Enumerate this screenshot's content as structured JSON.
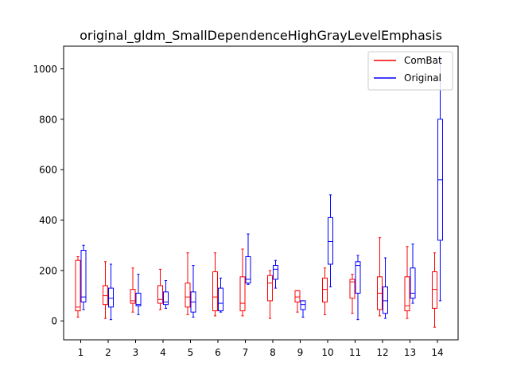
{
  "chart_data": {
    "type": "box",
    "title": "original_gldm_SmallDependenceHighGrayLevelEmphasis",
    "xlabel": "",
    "ylabel": "",
    "categories": [
      "1",
      "2",
      "3",
      "4",
      "5",
      "6",
      "7",
      "8",
      "9",
      "10",
      "11",
      "12",
      "13",
      "14"
    ],
    "ylim": [
      -75,
      1090
    ],
    "yticks": [
      0,
      200,
      400,
      600,
      800,
      1000
    ],
    "legend": {
      "position": "top-right"
    },
    "series": [
      {
        "name": "ComBat",
        "color": "#ff0000",
        "boxes": [
          {
            "whislo": 15,
            "q1": 40,
            "med": 55,
            "q3": 240,
            "whishi": 255
          },
          {
            "whislo": 10,
            "q1": 65,
            "med": 100,
            "q3": 140,
            "whishi": 235
          },
          {
            "whislo": 35,
            "q1": 70,
            "med": 80,
            "q3": 125,
            "whishi": 210
          },
          {
            "whislo": 45,
            "q1": 70,
            "med": 85,
            "q3": 140,
            "whishi": 205
          },
          {
            "whislo": 25,
            "q1": 55,
            "med": 95,
            "q3": 150,
            "whishi": 270
          },
          {
            "whislo": 20,
            "q1": 40,
            "med": 95,
            "q3": 195,
            "whishi": 270
          },
          {
            "whislo": 20,
            "q1": 40,
            "med": 70,
            "q3": 175,
            "whishi": 285
          },
          {
            "whislo": 10,
            "q1": 80,
            "med": 150,
            "q3": 180,
            "whishi": 200
          },
          {
            "whislo": 35,
            "q1": 75,
            "med": 95,
            "q3": 120,
            "whishi": 120
          },
          {
            "whislo": 25,
            "q1": 75,
            "med": 125,
            "q3": 170,
            "whishi": 210
          },
          {
            "whislo": 30,
            "q1": 90,
            "med": 155,
            "q3": 165,
            "whishi": 185
          },
          {
            "whislo": 20,
            "q1": 45,
            "med": 110,
            "q3": 175,
            "whishi": 330
          },
          {
            "whislo": 10,
            "q1": 40,
            "med": 60,
            "q3": 175,
            "whishi": 295
          },
          {
            "whislo": -25,
            "q1": 50,
            "med": 125,
            "q3": 195,
            "whishi": 270
          }
        ]
      },
      {
        "name": "Original",
        "color": "#0000ff",
        "boxes": [
          {
            "whislo": 45,
            "q1": 75,
            "med": 95,
            "q3": 280,
            "whishi": 300
          },
          {
            "whislo": 5,
            "q1": 55,
            "med": 90,
            "q3": 130,
            "whishi": 225
          },
          {
            "whislo": 25,
            "q1": 60,
            "med": 65,
            "q3": 110,
            "whishi": 185
          },
          {
            "whislo": 50,
            "q1": 65,
            "med": 75,
            "q3": 115,
            "whishi": 160
          },
          {
            "whislo": 15,
            "q1": 35,
            "med": 75,
            "q3": 115,
            "whishi": 220
          },
          {
            "whislo": 35,
            "q1": 40,
            "med": 70,
            "q3": 130,
            "whishi": 170
          },
          {
            "whislo": 145,
            "q1": 150,
            "med": 165,
            "q3": 255,
            "whishi": 345
          },
          {
            "whislo": 130,
            "q1": 165,
            "med": 205,
            "q3": 220,
            "whishi": 240
          },
          {
            "whislo": 15,
            "q1": 45,
            "med": 65,
            "q3": 80,
            "whishi": 80
          },
          {
            "whislo": 135,
            "q1": 225,
            "med": 315,
            "q3": 410,
            "whishi": 500
          },
          {
            "whislo": 5,
            "q1": 110,
            "med": 220,
            "q3": 235,
            "whishi": 260
          },
          {
            "whislo": 10,
            "q1": 30,
            "med": 80,
            "q3": 135,
            "whishi": 250
          },
          {
            "whislo": 70,
            "q1": 90,
            "med": 110,
            "q3": 210,
            "whishi": 305
          },
          {
            "whislo": 80,
            "q1": 320,
            "med": 560,
            "q3": 800,
            "whishi": 1040
          }
        ]
      }
    ]
  }
}
